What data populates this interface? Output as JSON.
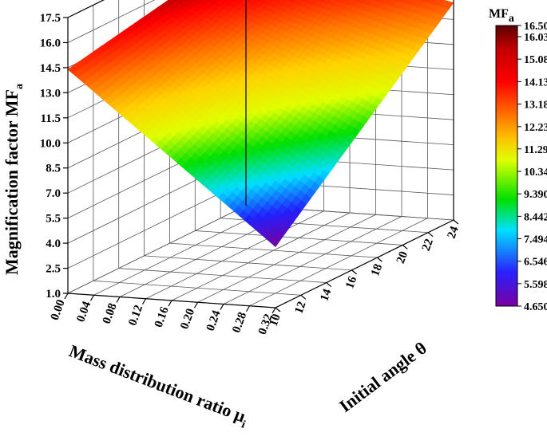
{
  "chart_data": {
    "type": "surface3d",
    "x_axis": {
      "label": "Mass distribution ratio μ",
      "label_subscript": "i",
      "ticks": [
        "0.00",
        "0.04",
        "0.08",
        "0.12",
        "0.16",
        "0.20",
        "0.24",
        "0.28",
        "0.32"
      ],
      "range": [
        0.0,
        0.32
      ]
    },
    "y_axis": {
      "label": "Initial angle θ",
      "ticks": [
        "10",
        "12",
        "14",
        "16",
        "18",
        "20",
        "22",
        "24"
      ],
      "range": [
        10,
        24
      ]
    },
    "z_axis": {
      "label": "Magnification factor MF",
      "label_subscript": "a",
      "ticks": [
        "1.0",
        "2.5",
        "4.0",
        "5.5",
        "7.0",
        "8.5",
        "10.0",
        "11.5",
        "13.0",
        "14.5",
        "16.0",
        "17.5"
      ],
      "range": [
        1.0,
        17.5
      ]
    },
    "surface_corners": [
      {
        "mu": 0.0,
        "theta": 10,
        "MF": 14.4
      },
      {
        "mu": 0.0,
        "theta": 24,
        "MF": 16.5
      },
      {
        "mu": 0.32,
        "theta": 24,
        "MF": 14.0
      },
      {
        "mu": 0.32,
        "theta": 10,
        "MF": 4.65
      }
    ],
    "colorbar": {
      "title": "MF",
      "title_subscript": "a",
      "ticks": [
        "16.50",
        "16.03",
        "15.08",
        "14.13",
        "13.18",
        "12.23",
        "11.29",
        "10.34",
        "9.390",
        "8.442",
        "7.494",
        "6.546",
        "5.598",
        "4.650"
      ],
      "range": [
        4.65,
        16.5
      ]
    },
    "colormap": [
      "#7a00a0",
      "#2020ff",
      "#00e0ff",
      "#00e000",
      "#e0ff00",
      "#ffd000",
      "#ff7000",
      "#ff0000",
      "#600000"
    ],
    "grid": true,
    "legend": "colorbar-right"
  }
}
